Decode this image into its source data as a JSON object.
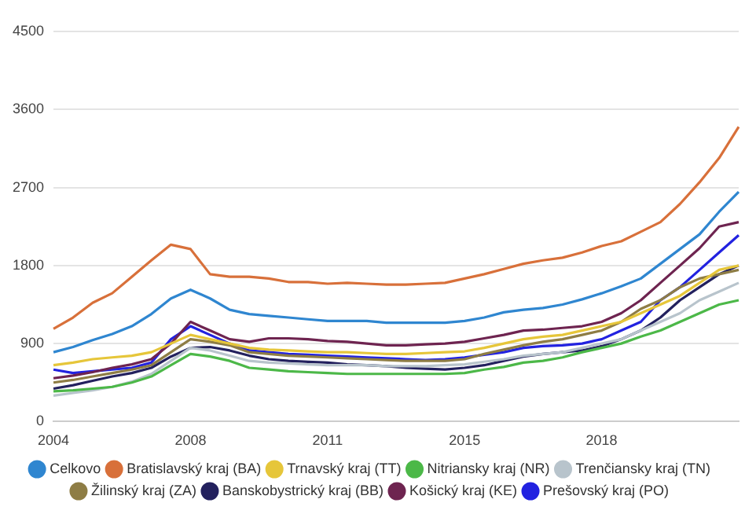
{
  "chart_data": {
    "type": "line",
    "categories": [
      "2004",
      null,
      null,
      null,
      null,
      null,
      null,
      "2008",
      null,
      null,
      null,
      null,
      null,
      null,
      "2011",
      null,
      null,
      null,
      null,
      null,
      null,
      "2015",
      null,
      null,
      null,
      null,
      null,
      null,
      "2018",
      null,
      null,
      null,
      null,
      null,
      null,
      null
    ],
    "ylim": [
      0,
      4500
    ],
    "yticks": [
      0,
      900,
      1800,
      2700,
      3600,
      4500
    ],
    "grid": "y",
    "legend": "bottom",
    "marker": "none",
    "line_style": "solid",
    "series": [
      {
        "name": "Celkovo",
        "color": "#2f86d0",
        "values": [
          800,
          860,
          940,
          1010,
          1100,
          1240,
          1420,
          1520,
          1420,
          1290,
          1240,
          1220,
          1200,
          1180,
          1160,
          1160,
          1160,
          1140,
          1140,
          1140,
          1140,
          1160,
          1200,
          1260,
          1290,
          1310,
          1350,
          1410,
          1480,
          1560,
          1650,
          1820,
          1990,
          2160,
          2420,
          2650
        ]
      },
      {
        "name": "Bratislavský kraj (BA)",
        "color": "#d8703a",
        "values": [
          1070,
          1200,
          1370,
          1480,
          1670,
          1860,
          2040,
          1990,
          1700,
          1670,
          1670,
          1650,
          1610,
          1610,
          1590,
          1600,
          1590,
          1580,
          1580,
          1590,
          1600,
          1650,
          1700,
          1760,
          1820,
          1860,
          1890,
          1950,
          2025,
          2080,
          2190,
          2300,
          2510,
          2760,
          3040,
          3400
        ]
      },
      {
        "name": "Trnavský kraj (TT)",
        "color": "#e6c63a",
        "values": [
          650,
          680,
          720,
          740,
          760,
          800,
          900,
          1000,
          950,
          900,
          850,
          830,
          820,
          810,
          800,
          800,
          790,
          780,
          780,
          790,
          800,
          810,
          850,
          900,
          950,
          980,
          1000,
          1050,
          1100,
          1150,
          1250,
          1350,
          1450,
          1600,
          1750,
          1800
        ]
      },
      {
        "name": "Nitriansky kraj (NR)",
        "color": "#4cb848",
        "values": [
          350,
          360,
          380,
          400,
          450,
          520,
          650,
          780,
          750,
          700,
          620,
          600,
          580,
          570,
          560,
          550,
          550,
          550,
          550,
          550,
          550,
          560,
          600,
          630,
          680,
          700,
          740,
          800,
          850,
          900,
          980,
          1050,
          1150,
          1250,
          1350,
          1400
        ]
      },
      {
        "name": "Trenčiansky kraj (TN)",
        "color": "#b8c4cc",
        "values": [
          300,
          330,
          360,
          400,
          460,
          550,
          700,
          850,
          820,
          760,
          700,
          680,
          670,
          660,
          650,
          650,
          650,
          640,
          640,
          640,
          650,
          660,
          690,
          720,
          760,
          780,
          800,
          850,
          900,
          950,
          1050,
          1150,
          1250,
          1400,
          1500,
          1600
        ]
      },
      {
        "name": "Žilinský kraj (ZA)",
        "color": "#8e7d45",
        "values": [
          450,
          480,
          520,
          560,
          600,
          650,
          800,
          950,
          920,
          880,
          800,
          780,
          760,
          750,
          740,
          730,
          720,
          710,
          700,
          700,
          700,
          720,
          780,
          830,
          880,
          920,
          950,
          1000,
          1050,
          1150,
          1300,
          1400,
          1550,
          1650,
          1700,
          1750
        ]
      },
      {
        "name": "Banskobystrický kraj (BB)",
        "color": "#23215e",
        "values": [
          380,
          420,
          470,
          520,
          560,
          620,
          750,
          850,
          860,
          820,
          760,
          720,
          700,
          690,
          680,
          660,
          650,
          640,
          620,
          610,
          600,
          620,
          650,
          700,
          750,
          780,
          800,
          820,
          870,
          950,
          1050,
          1200,
          1400,
          1550,
          1700,
          1800
        ]
      },
      {
        "name": "Košický kraj (KE)",
        "color": "#6e2450",
        "values": [
          500,
          530,
          570,
          620,
          660,
          720,
          900,
          1150,
          1050,
          950,
          920,
          960,
          960,
          950,
          930,
          920,
          900,
          880,
          880,
          890,
          900,
          920,
          960,
          1000,
          1050,
          1060,
          1080,
          1100,
          1150,
          1250,
          1400,
          1600,
          1800,
          2000,
          2250,
          2300
        ]
      },
      {
        "name": "Prešovský kraj (PO)",
        "color": "#2222e0",
        "values": [
          600,
          560,
          580,
          600,
          620,
          680,
          950,
          1100,
          1000,
          900,
          820,
          800,
          780,
          770,
          760,
          750,
          740,
          730,
          720,
          710,
          720,
          740,
          770,
          800,
          850,
          870,
          880,
          900,
          950,
          1050,
          1150,
          1400,
          1550,
          1750,
          1950,
          2150
        ]
      }
    ]
  }
}
